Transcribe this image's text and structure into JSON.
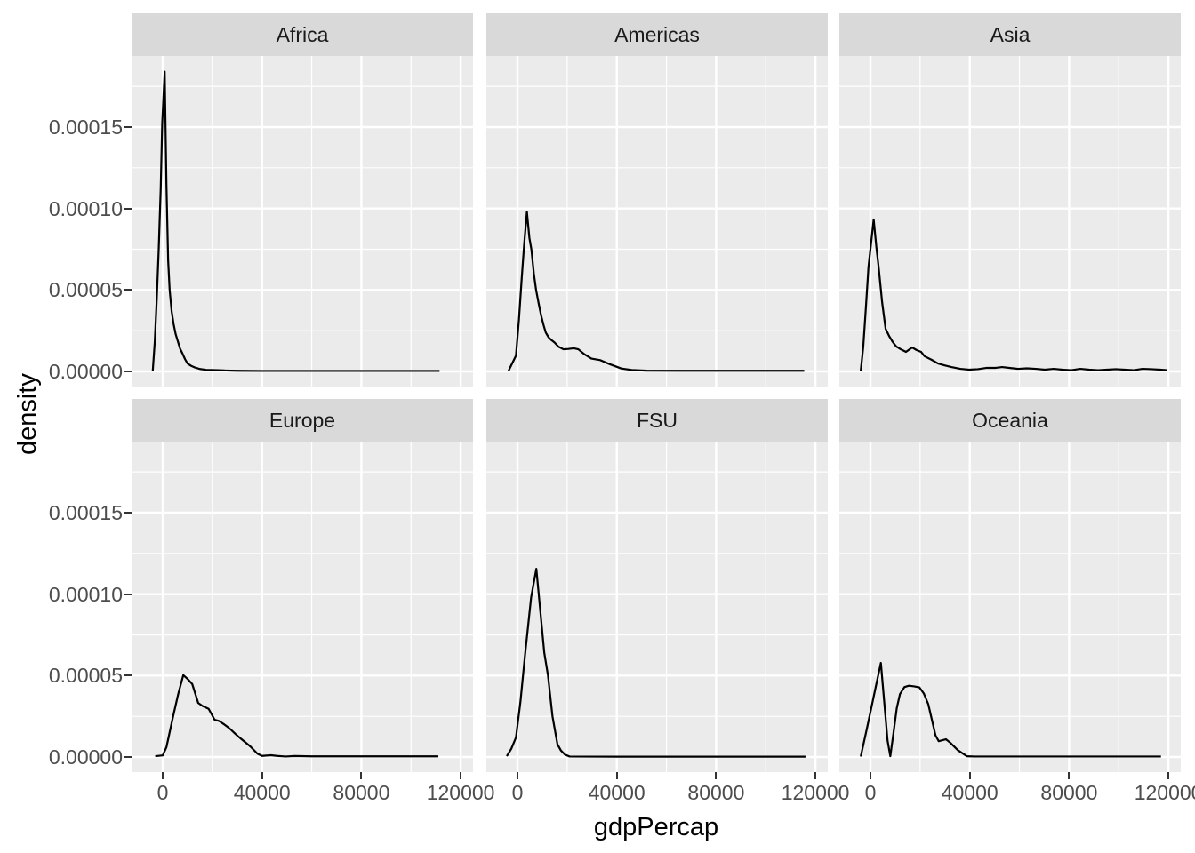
{
  "figure": {
    "background": "#ffffff"
  },
  "style": {
    "panel_bg": "#ebebeb",
    "strip_bg": "#d9d9d9",
    "grid_color": "#ffffff",
    "line_color": "#000000",
    "tick_mark_color": "#333333",
    "tick_label_color": "#4d4d4d",
    "strip_text_color": "#1a1a1a",
    "axis_title_color": "#000000"
  },
  "chart_data": {
    "type": "line",
    "subtype": "faceted-kernel-density",
    "title": "",
    "xlabel": "gdpPercap",
    "ylabel": "density",
    "grid": true,
    "legend": "none",
    "facet_labels": [
      "Africa",
      "Americas",
      "Asia",
      "Europe",
      "FSU",
      "Oceania"
    ],
    "x_ticks": {
      "values": [
        0,
        40000,
        80000,
        120000
      ],
      "labels": [
        "0",
        "40000",
        "80000",
        "120000"
      ]
    },
    "x_minor": [
      20000,
      60000,
      100000
    ],
    "y_ticks": {
      "values": [
        0,
        5e-05,
        0.0001,
        0.00015
      ],
      "labels": [
        "0.00000",
        "0.00005",
        "0.00010",
        "0.00015"
      ]
    },
    "y_minor": [
      2.5e-05,
      7.5e-05,
      0.000125,
      0.000175
    ],
    "xlim": [
      -12534,
      124978
    ],
    "ylim": [
      -9.27e-06,
      0.00019363
    ],
    "facets": [
      {
        "label": "Africa",
        "points": [
          [
            -4000,
            5e-07
          ],
          [
            -3200,
            1.8e-05
          ],
          [
            -2400,
            4.4e-05
          ],
          [
            -1600,
            7.5e-05
          ],
          [
            -800,
            0.000112
          ],
          [
            -200,
            0.000152
          ],
          [
            800,
            0.000184
          ],
          [
            1500,
            0.000115
          ],
          [
            2200,
            6.8e-05
          ],
          [
            2800,
            5e-05
          ],
          [
            3600,
            3.7e-05
          ],
          [
            4400,
            2.9e-05
          ],
          [
            5200,
            2.3e-05
          ],
          [
            6000,
            1.9e-05
          ],
          [
            7000,
            1.4e-05
          ],
          [
            8000,
            1.09e-05
          ],
          [
            9000,
            7.5e-06
          ],
          [
            10000,
            4.9e-06
          ],
          [
            11500,
            3.4e-06
          ],
          [
            13000,
            2.4e-06
          ],
          [
            15000,
            1.5e-06
          ],
          [
            17500,
            1e-06
          ],
          [
            20000,
            9e-07
          ],
          [
            22500,
            8e-07
          ],
          [
            25000,
            6e-07
          ],
          [
            30000,
            4e-07
          ],
          [
            40000,
            3e-07
          ],
          [
            60000,
            3e-07
          ],
          [
            85000,
            3e-07
          ],
          [
            111500,
            3e-07
          ]
        ]
      },
      {
        "label": "Americas",
        "points": [
          [
            -3600,
            3e-07
          ],
          [
            -2600,
            3.5e-06
          ],
          [
            -600,
            9.7e-06
          ],
          [
            600,
            3.2e-05
          ],
          [
            1700,
            5.7e-05
          ],
          [
            2700,
            7.8e-05
          ],
          [
            3800,
            9.8e-05
          ],
          [
            4800,
            8.2e-05
          ],
          [
            5600,
            7.5e-05
          ],
          [
            6600,
            6e-05
          ],
          [
            7500,
            5e-05
          ],
          [
            8500,
            4.2e-05
          ],
          [
            9500,
            3.45e-05
          ],
          [
            10500,
            2.85e-05
          ],
          [
            11400,
            2.38e-05
          ],
          [
            12500,
            2.1e-05
          ],
          [
            13700,
            1.92e-05
          ],
          [
            14900,
            1.78e-05
          ],
          [
            16500,
            1.52e-05
          ],
          [
            18500,
            1.36e-05
          ],
          [
            20500,
            1.38e-05
          ],
          [
            22700,
            1.42e-05
          ],
          [
            24500,
            1.36e-05
          ],
          [
            26900,
            1.06e-05
          ],
          [
            29800,
            7.9e-06
          ],
          [
            33400,
            6.9e-06
          ],
          [
            35500,
            5.5e-06
          ],
          [
            37600,
            4.2e-06
          ],
          [
            41800,
            1.8e-06
          ],
          [
            46000,
            9e-07
          ],
          [
            52000,
            5e-07
          ],
          [
            70000,
            4e-07
          ],
          [
            95000,
            4e-07
          ],
          [
            115500,
            4e-07
          ]
        ]
      },
      {
        "label": "Asia",
        "points": [
          [
            -3900,
            5e-07
          ],
          [
            -2900,
            1.5e-05
          ],
          [
            -1800,
            4e-05
          ],
          [
            -800,
            6.4e-05
          ],
          [
            1300,
            9.33e-05
          ],
          [
            2400,
            7.6e-05
          ],
          [
            3300,
            6.4e-05
          ],
          [
            4700,
            4.25e-05
          ],
          [
            6100,
            2.62e-05
          ],
          [
            7500,
            2.18e-05
          ],
          [
            9000,
            1.8e-05
          ],
          [
            10400,
            1.53e-05
          ],
          [
            12200,
            1.36e-05
          ],
          [
            14300,
            1.2e-05
          ],
          [
            16800,
            1.47e-05
          ],
          [
            18600,
            1.31e-05
          ],
          [
            20400,
            1.2e-05
          ],
          [
            21800,
            9.3e-06
          ],
          [
            24700,
            7.1e-06
          ],
          [
            27200,
            4.9e-06
          ],
          [
            29700,
            3.8e-06
          ],
          [
            32600,
            2.7e-06
          ],
          [
            36200,
            1.6e-06
          ],
          [
            39700,
            1.1e-06
          ],
          [
            43300,
            1.4e-06
          ],
          [
            46900,
            2.2e-06
          ],
          [
            50500,
            2.2e-06
          ],
          [
            53000,
            2.7e-06
          ],
          [
            55900,
            2.2e-06
          ],
          [
            59400,
            1.6e-06
          ],
          [
            63000,
            1.9e-06
          ],
          [
            66600,
            1.6e-06
          ],
          [
            70200,
            1.1e-06
          ],
          [
            73800,
            1.6e-06
          ],
          [
            77300,
            1.1e-06
          ],
          [
            80900,
            8e-07
          ],
          [
            84500,
            1.6e-06
          ],
          [
            88100,
            1.1e-06
          ],
          [
            91700,
            8e-07
          ],
          [
            95200,
            1.1e-06
          ],
          [
            98800,
            1.4e-06
          ],
          [
            102400,
            1.1e-06
          ],
          [
            106000,
            8e-07
          ],
          [
            109600,
            1.6e-06
          ],
          [
            113100,
            1.4e-06
          ],
          [
            116700,
            1.1e-06
          ],
          [
            119600,
            8e-07
          ]
        ]
      },
      {
        "label": "Europe",
        "points": [
          [
            -3000,
            5e-07
          ],
          [
            0,
            1e-06
          ],
          [
            1500,
            6e-06
          ],
          [
            4200,
            2.5e-05
          ],
          [
            6300,
            3.9e-05
          ],
          [
            8300,
            5.03e-05
          ],
          [
            10000,
            4.8e-05
          ],
          [
            11900,
            4.48e-05
          ],
          [
            14300,
            3.32e-05
          ],
          [
            16100,
            3.13e-05
          ],
          [
            18500,
            2.96e-05
          ],
          [
            20900,
            2.29e-05
          ],
          [
            22700,
            2.21e-05
          ],
          [
            24800,
            2e-05
          ],
          [
            26900,
            1.76e-05
          ],
          [
            29200,
            1.43e-05
          ],
          [
            31600,
            1.11e-05
          ],
          [
            35200,
            6.6e-06
          ],
          [
            38200,
            2e-06
          ],
          [
            40000,
            7e-07
          ],
          [
            43600,
            1.1e-06
          ],
          [
            46000,
            7e-07
          ],
          [
            49500,
            3e-07
          ],
          [
            53100,
            6e-07
          ],
          [
            60000,
            4e-07
          ],
          [
            80000,
            4e-07
          ],
          [
            95000,
            4e-07
          ],
          [
            111000,
            4e-07
          ]
        ]
      },
      {
        "label": "FSU",
        "points": [
          [
            -4300,
            5e-07
          ],
          [
            -2500,
            5e-06
          ],
          [
            -600,
            1.2e-05
          ],
          [
            1200,
            3.4e-05
          ],
          [
            3000,
            6.2e-05
          ],
          [
            5500,
            9.8e-05
          ],
          [
            7600,
            0.0001156
          ],
          [
            9300,
            8.8e-05
          ],
          [
            10800,
            6.4e-05
          ],
          [
            12300,
            5e-05
          ],
          [
            14100,
            2.5e-05
          ],
          [
            16100,
            7.8e-06
          ],
          [
            17500,
            4e-06
          ],
          [
            19100,
            1.5e-06
          ],
          [
            21000,
            3e-07
          ],
          [
            40000,
            2e-07
          ],
          [
            70000,
            2e-07
          ],
          [
            100000,
            2e-07
          ],
          [
            116000,
            2e-07
          ]
        ]
      },
      {
        "label": "Oceania",
        "points": [
          [
            -3900,
            3e-07
          ],
          [
            -1500,
            1.7e-05
          ],
          [
            600,
            3.2e-05
          ],
          [
            2400,
            4.5e-05
          ],
          [
            4200,
            5.78e-05
          ],
          [
            5600,
            3.3e-05
          ],
          [
            6900,
            1e-05
          ],
          [
            8000,
            5e-07
          ],
          [
            9300,
            1.5e-05
          ],
          [
            10600,
            3e-05
          ],
          [
            11900,
            3.87e-05
          ],
          [
            13700,
            4.3e-05
          ],
          [
            15500,
            4.38e-05
          ],
          [
            17600,
            4.34e-05
          ],
          [
            19700,
            4.28e-05
          ],
          [
            21500,
            3.9e-05
          ],
          [
            23300,
            3.24e-05
          ],
          [
            26200,
            1.33e-05
          ],
          [
            27500,
            9.7e-06
          ],
          [
            30400,
            1.09e-05
          ],
          [
            32200,
            8.7e-06
          ],
          [
            35200,
            4.2e-06
          ],
          [
            38800,
            5e-07
          ],
          [
            42000,
            3e-07
          ],
          [
            60000,
            3e-07
          ],
          [
            90000,
            3e-07
          ],
          [
            117000,
            3e-07
          ]
        ]
      }
    ]
  }
}
